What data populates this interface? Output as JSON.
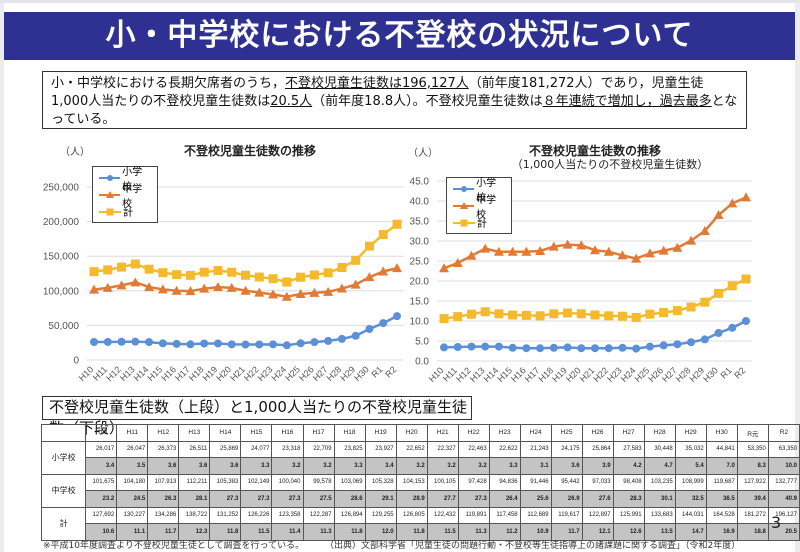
{
  "title": "小・中学校における不登校の状況について",
  "summary": {
    "part1": "小・中学校における長期欠席者のうち，",
    "u1": "不登校児童生徒数は196,127人",
    "part2": "（前年度181,272人）であり，児童生徒1,000人当たりの不登校児童生徒数は",
    "u2": "20.5人",
    "part3": "（前年度18.8人）。不登校児童生徒数は",
    "u3": "８年連続で増加し，過去最多",
    "part4": "となっている。"
  },
  "years": [
    "H10",
    "H11",
    "H12",
    "H13",
    "H14",
    "H15",
    "H16",
    "H17",
    "H18",
    "H19",
    "H20",
    "H21",
    "H22",
    "H23",
    "H24",
    "H25",
    "H26",
    "H27",
    "H28",
    "H29",
    "H30",
    "R元",
    "R2"
  ],
  "colors": {
    "elementary": "#5b8fd6",
    "junior": "#e07a35",
    "total": "#f5b92e",
    "title_bg": "#2e3192"
  },
  "chart_data": [
    {
      "type": "line",
      "title": "不登校児童生徒数の推移",
      "ylabel": "（人）",
      "xlabel": "",
      "categories": [
        "H10",
        "H11",
        "H12",
        "H13",
        "H14",
        "H15",
        "H16",
        "H17",
        "H18",
        "H19",
        "H20",
        "H21",
        "H22",
        "H23",
        "H24",
        "H25",
        "H26",
        "H27",
        "H28",
        "H29",
        "H30",
        "R1",
        "R2"
      ],
      "ylim": [
        0,
        250000
      ],
      "yticks": [
        "0",
        "50,000",
        "100,000",
        "150,000",
        "200,000",
        "250,000"
      ],
      "ytick_values": [
        0,
        50000,
        100000,
        150000,
        200000,
        250000
      ],
      "grid": true,
      "legend": "top-left",
      "series": [
        {
          "name": "小学校",
          "marker": "circle",
          "values": [
            26017,
            26047,
            26373,
            26511,
            25869,
            24077,
            23318,
            22709,
            23825,
            23927,
            22652,
            22327,
            22463,
            22622,
            21243,
            24175,
            25864,
            27583,
            30448,
            35032,
            44841,
            53350,
            63350
          ]
        },
        {
          "name": "中学校",
          "marker": "triangle",
          "values": [
            101675,
            104180,
            107913,
            112211,
            105383,
            102149,
            100040,
            99578,
            103069,
            105328,
            104153,
            100105,
            97428,
            94836,
            91446,
            95442,
            97033,
            98408,
            103235,
            108999,
            119687,
            127922,
            132777
          ]
        },
        {
          "name": "計",
          "marker": "square",
          "values": [
            127692,
            130227,
            134286,
            138722,
            131252,
            126226,
            123358,
            122287,
            126894,
            129255,
            126805,
            122432,
            119891,
            117458,
            112689,
            119617,
            122897,
            125991,
            133683,
            144031,
            164528,
            181272,
            196127
          ]
        }
      ]
    },
    {
      "type": "line",
      "title": "不登校児童生徒数の推移",
      "subtitle": "（1,000人当たりの不登校児童生徒数）",
      "ylabel": "（人）",
      "xlabel": "",
      "categories": [
        "H10",
        "H11",
        "H12",
        "H13",
        "H14",
        "H15",
        "H16",
        "H17",
        "H18",
        "H19",
        "H20",
        "H21",
        "H22",
        "H23",
        "H24",
        "H25",
        "H26",
        "H27",
        "H28",
        "H29",
        "H30",
        "R1",
        "R2"
      ],
      "ylim": [
        0,
        45
      ],
      "yticks": [
        "0.0",
        "5.0",
        "10.0",
        "15.0",
        "20.0",
        "25.0",
        "30.0",
        "35.0",
        "40.0",
        "45.0"
      ],
      "ytick_values": [
        0,
        5,
        10,
        15,
        20,
        25,
        30,
        35,
        40,
        45
      ],
      "grid": true,
      "legend": "top-left",
      "series": [
        {
          "name": "小学校",
          "marker": "circle",
          "values": [
            3.4,
            3.5,
            3.6,
            3.6,
            3.6,
            3.3,
            3.2,
            3.2,
            3.3,
            3.4,
            3.2,
            3.2,
            3.2,
            3.3,
            3.1,
            3.6,
            3.9,
            4.2,
            4.7,
            5.4,
            7.0,
            8.3,
            10.0
          ]
        },
        {
          "name": "中学校",
          "marker": "triangle",
          "values": [
            23.2,
            24.5,
            26.3,
            28.1,
            27.3,
            27.3,
            27.3,
            27.5,
            28.6,
            29.1,
            28.9,
            27.7,
            27.3,
            26.4,
            25.6,
            26.9,
            27.6,
            28.3,
            30.1,
            32.5,
            36.5,
            39.4,
            40.9
          ]
        },
        {
          "name": "計",
          "marker": "square",
          "values": [
            10.6,
            11.1,
            11.7,
            12.3,
            11.8,
            11.5,
            11.4,
            11.3,
            11.8,
            12.0,
            11.8,
            11.5,
            11.3,
            11.2,
            10.9,
            11.7,
            12.1,
            12.6,
            13.5,
            14.7,
            16.9,
            18.8,
            20.5
          ]
        }
      ]
    },
    {
      "type": "table",
      "title": "不登校児童生徒数（上段）と1,000人当たりの不登校児童生徒数（下段）",
      "columns": [
        "H10",
        "H11",
        "H12",
        "H13",
        "H14",
        "H15",
        "H16",
        "H17",
        "H18",
        "H19",
        "H20",
        "H21",
        "H22",
        "H23",
        "H24",
        "H25",
        "H26",
        "H27",
        "H28",
        "H29",
        "H30",
        "R元",
        "R2"
      ],
      "rows": [
        {
          "label": "小学校",
          "counts": [
            "26,017",
            "26,047",
            "26,373",
            "26,511",
            "25,869",
            "24,077",
            "23,318",
            "22,709",
            "23,825",
            "23,927",
            "22,652",
            "22,327",
            "22,463",
            "22,622",
            "21,243",
            "24,175",
            "25,864",
            "27,583",
            "30,448",
            "35,032",
            "44,841",
            "53,350",
            "63,350"
          ],
          "rates": [
            "3.4",
            "3.5",
            "3.6",
            "3.6",
            "3.6",
            "3.3",
            "3.2",
            "3.2",
            "3.3",
            "3.4",
            "3.2",
            "3.2",
            "3.2",
            "3.3",
            "3.1",
            "3.6",
            "3.9",
            "4.2",
            "4.7",
            "5.4",
            "7.0",
            "8.3",
            "10.0"
          ]
        },
        {
          "label": "中学校",
          "counts": [
            "101,675",
            "104,180",
            "107,913",
            "112,211",
            "105,383",
            "102,149",
            "100,040",
            "99,578",
            "103,069",
            "105,328",
            "104,153",
            "100,105",
            "97,428",
            "94,836",
            "91,446",
            "95,442",
            "97,033",
            "98,408",
            "103,235",
            "108,999",
            "119,687",
            "127,922",
            "132,777"
          ],
          "rates": [
            "23.2",
            "24.5",
            "26.3",
            "28.1",
            "27.3",
            "27.3",
            "27.3",
            "27.5",
            "28.6",
            "29.1",
            "28.9",
            "27.7",
            "27.3",
            "26.4",
            "25.6",
            "26.9",
            "27.6",
            "28.3",
            "30.1",
            "32.5",
            "36.5",
            "39.4",
            "40.9"
          ]
        },
        {
          "label": "計",
          "counts": [
            "127,692",
            "130,227",
            "134,286",
            "138,722",
            "131,252",
            "126,226",
            "123,358",
            "122,287",
            "126,894",
            "129,255",
            "126,805",
            "122,432",
            "119,891",
            "117,458",
            "112,689",
            "119,617",
            "122,897",
            "125,991",
            "133,683",
            "144,031",
            "164,528",
            "181,272",
            "196,127"
          ],
          "rates": [
            "10.6",
            "11.1",
            "11.7",
            "12.3",
            "11.8",
            "11.5",
            "11.4",
            "11.3",
            "11.8",
            "12.0",
            "11.8",
            "11.5",
            "11.3",
            "11.2",
            "10.9",
            "11.7",
            "12.1",
            "12.6",
            "13.5",
            "14.7",
            "16.9",
            "18.8",
            "20.5"
          ]
        }
      ]
    }
  ],
  "table_title": "不登校児童生徒数（上段）と1,000人当たりの不登校児童生徒数（下段）",
  "note": "※平成10年度調査より不登校児童生徒として調査を行っている。",
  "source": "（出典）文部科学省「児童生徒の問題行動・不登校等生徒指導上の諸課題に関する調査」（令和2年度）",
  "page_number": "3"
}
